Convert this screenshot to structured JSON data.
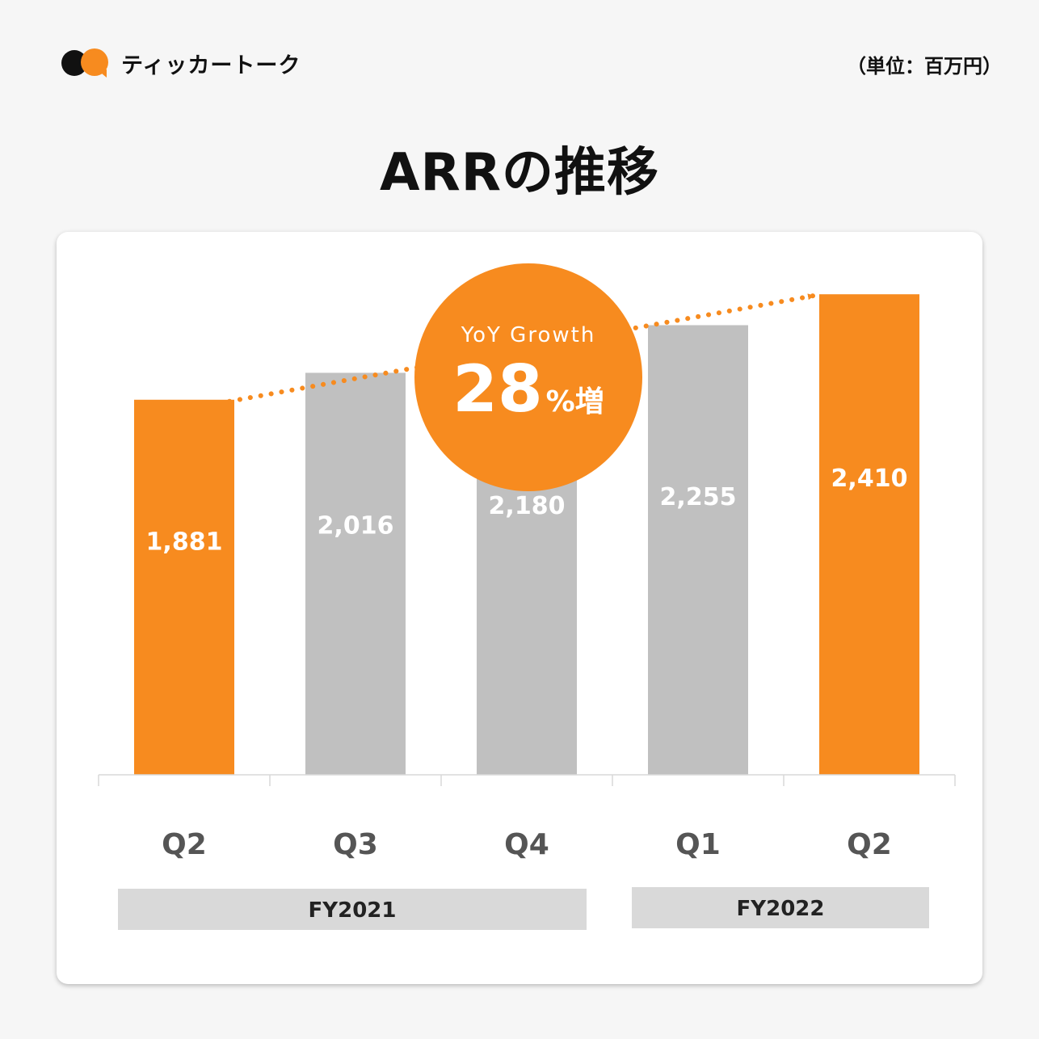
{
  "header": {
    "brand_name": "ティッカートーク",
    "unit_label": "（単位：百万円）",
    "page_title": "ARRの推移"
  },
  "growth_badge": {
    "label": "YoY Growth",
    "value": "28",
    "suffix": "%増"
  },
  "colors": {
    "highlight": "#f78b1f",
    "neutral": "#c0c0c0",
    "fiscal_band": "#d9d9d9"
  },
  "chart_data": {
    "type": "bar",
    "title": "ARRの推移",
    "categories": [
      "Q2",
      "Q3",
      "Q4",
      "Q1",
      "Q2"
    ],
    "values": [
      1881,
      2016,
      2180,
      2255,
      2410
    ],
    "value_labels": [
      "1,881",
      "2,016",
      "2,180",
      "2,255",
      "2,410"
    ],
    "highlighted": [
      true,
      false,
      false,
      false,
      true
    ],
    "ylim": [
      0,
      2500
    ],
    "fiscal_groups": [
      {
        "label": "FY2021",
        "categories": [
          "Q2",
          "Q3",
          "Q4"
        ]
      },
      {
        "label": "FY2022",
        "categories": [
          "Q1",
          "Q2"
        ]
      }
    ],
    "trend_arrow": {
      "from": "Q2 FY2021",
      "to": "Q2 FY2022"
    },
    "grid": false
  }
}
